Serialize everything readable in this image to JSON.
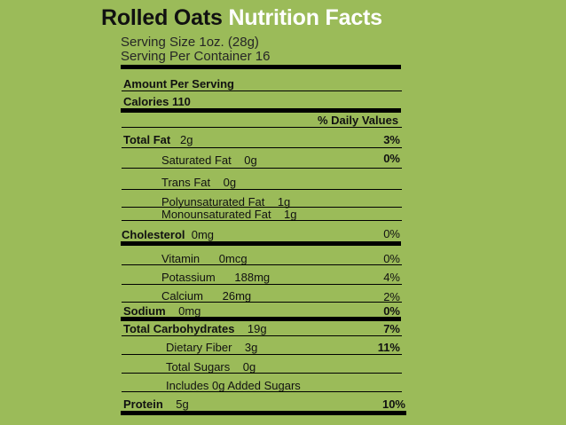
{
  "title": {
    "product": "Rolled Oats",
    "heading": "Nutrition Facts"
  },
  "serving": {
    "size": "Serving Size 1oz. (28g)",
    "per_container": "Serving Per Container 16"
  },
  "amount_per_serving": "Amount Per Serving",
  "calories": {
    "label": "Calories",
    "value": "110"
  },
  "daily_values_header": "% Daily Values",
  "nutrients": [
    {
      "name": "Total Fat",
      "amount": "2g",
      "dv": "3%"
    },
    {
      "name": "Saturated Fat",
      "amount": "0g",
      "dv": "0%"
    },
    {
      "name": "Trans Fat",
      "amount": "0g",
      "dv": ""
    },
    {
      "name": "Polyunsaturated Fat",
      "amount": "1g",
      "dv": ""
    },
    {
      "name": "Monounsaturated Fat",
      "amount": "1g",
      "dv": ""
    },
    {
      "name": "Cholesterol",
      "amount": "0mg",
      "dv": "0%"
    },
    {
      "name": "Vitamin",
      "amount": "0mcg",
      "dv": "0%"
    },
    {
      "name": "Potassium",
      "amount": "188mg",
      "dv": "4%"
    },
    {
      "name": "Calcium",
      "amount": "26mg",
      "dv": "2%"
    },
    {
      "name": "Sodium",
      "amount": "0mg",
      "dv": "0%"
    },
    {
      "name": "Total Carbohydrates",
      "amount": "19g",
      "dv": "7%"
    },
    {
      "name": "Dietary Fiber",
      "amount": "3g",
      "dv": "11%"
    },
    {
      "name": "Total Sugars",
      "amount": "0g",
      "dv": ""
    },
    {
      "name": "Includes 0g Added Sugars",
      "amount": "",
      "dv": ""
    },
    {
      "name": "Protein",
      "amount": "5g",
      "dv": "10%"
    }
  ],
  "colors": {
    "background": "#9bbb59",
    "title_dark": "#111111",
    "title_light": "#ffffff",
    "rules": "#000000"
  }
}
